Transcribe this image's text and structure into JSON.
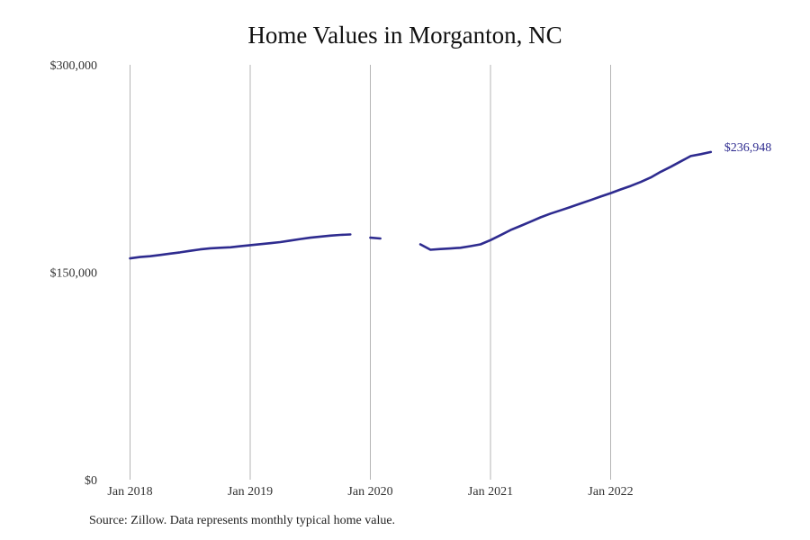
{
  "chart_data": {
    "type": "line",
    "title": "Home Values in Morganton, NC",
    "xlabel": "",
    "ylabel": "",
    "ylim": [
      0,
      300000
    ],
    "yticks": [
      0,
      150000,
      300000
    ],
    "ytick_labels": [
      "$0",
      "$150,000",
      "$300,000"
    ],
    "xlim": [
      "2018-01",
      "2022-12"
    ],
    "xticks": [
      "2018-01",
      "2019-01",
      "2020-01",
      "2021-01",
      "2022-01"
    ],
    "xtick_labels": [
      "Jan 2018",
      "Jan 2019",
      "Jan 2020",
      "Jan 2021",
      "Jan 2022"
    ],
    "grid": "vertical",
    "line_color": "#2e2b8f",
    "series": [
      {
        "points": [
          [
            "2018-01",
            160000
          ],
          [
            "2018-02",
            161000
          ],
          [
            "2018-03",
            161600
          ],
          [
            "2018-04",
            162500
          ],
          [
            "2018-05",
            163500
          ],
          [
            "2018-06",
            164400
          ],
          [
            "2018-07",
            165500
          ],
          [
            "2018-08",
            166500
          ],
          [
            "2018-09",
            167300
          ],
          [
            "2018-10",
            167700
          ],
          [
            "2018-11",
            168000
          ],
          [
            "2018-12",
            168800
          ],
          [
            "2019-01",
            169600
          ],
          [
            "2019-02",
            170300
          ],
          [
            "2019-03",
            171000
          ],
          [
            "2019-04",
            171800
          ],
          [
            "2019-05",
            172900
          ],
          [
            "2019-06",
            174000
          ],
          [
            "2019-07",
            175000
          ],
          [
            "2019-08",
            175800
          ],
          [
            "2019-09",
            176500
          ],
          [
            "2019-10",
            177000
          ],
          [
            "2019-11",
            177300
          ],
          [
            "2019-12",
            null
          ],
          [
            "2020-01",
            175000
          ],
          [
            "2020-02",
            174400
          ],
          [
            "2020-03",
            null
          ],
          [
            "2020-04",
            null
          ],
          [
            "2020-05",
            null
          ],
          [
            "2020-06",
            170200
          ],
          [
            "2020-07",
            166300
          ],
          [
            "2020-08",
            166800
          ],
          [
            "2020-09",
            167200
          ],
          [
            "2020-10",
            167700
          ],
          [
            "2020-11",
            168900
          ],
          [
            "2020-12",
            170200
          ],
          [
            "2021-01",
            173200
          ],
          [
            "2021-02",
            176800
          ],
          [
            "2021-03",
            180500
          ],
          [
            "2021-04",
            183500
          ],
          [
            "2021-05",
            186600
          ],
          [
            "2021-06",
            189700
          ],
          [
            "2021-07",
            192400
          ],
          [
            "2021-08",
            194800
          ],
          [
            "2021-09",
            197200
          ],
          [
            "2021-10",
            199700
          ],
          [
            "2021-11",
            202200
          ],
          [
            "2021-12",
            204700
          ],
          [
            "2022-01",
            207200
          ],
          [
            "2022-02",
            209900
          ],
          [
            "2022-03",
            212400
          ],
          [
            "2022-04",
            215300
          ],
          [
            "2022-05",
            218500
          ],
          [
            "2022-06",
            222600
          ],
          [
            "2022-07",
            226300
          ],
          [
            "2022-08",
            230200
          ],
          [
            "2022-09",
            234000
          ],
          [
            "2022-10",
            235400
          ],
          [
            "2022-11",
            236948
          ]
        ]
      }
    ],
    "end_label": "$236,948"
  },
  "footer": {
    "source": "Source: Zillow. Data represents monthly typical home value."
  }
}
